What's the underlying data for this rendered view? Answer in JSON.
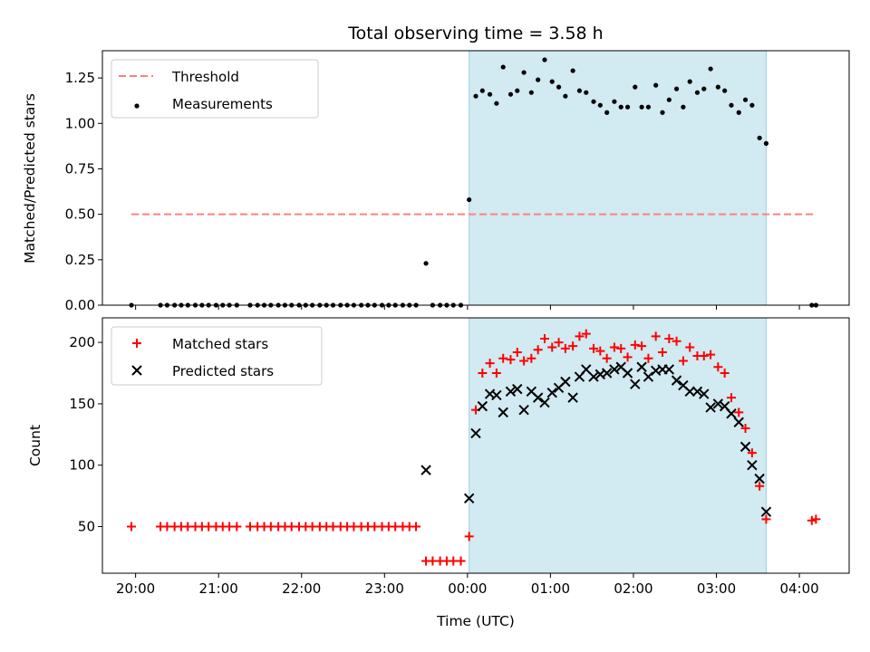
{
  "chart_data": [
    {
      "type": "scatter",
      "title": "Total observing time = 3.58 h",
      "xlabel": "",
      "ylabel": "Matched/Predicted stars",
      "ylim": [
        0,
        1.4
      ],
      "yticks": [
        "0.00",
        "0.25",
        "0.50",
        "0.75",
        "1.00",
        "1.25"
      ],
      "shaded_interval": {
        "start_hour": 24.02,
        "end_hour": 27.6,
        "color": "#add8e6"
      },
      "legend": {
        "placement": "top-left",
        "entries": [
          "Threshold",
          "Measurements"
        ]
      },
      "series": [
        {
          "name": "Threshold",
          "style": "dashed-line",
          "color": "#ff7f7f",
          "x": [
            19.95,
            28.2
          ],
          "y": [
            0.5,
            0.5
          ]
        },
        {
          "name": "Measurements",
          "style": "dot",
          "color": "#000000",
          "x": [
            19.95,
            20.3,
            20.38,
            20.47,
            20.55,
            20.63,
            20.72,
            20.8,
            20.88,
            20.97,
            21.05,
            21.13,
            21.22,
            21.38,
            21.47,
            21.55,
            21.63,
            21.72,
            21.8,
            21.88,
            21.97,
            22.05,
            22.13,
            22.22,
            22.3,
            22.38,
            22.47,
            22.55,
            22.63,
            22.72,
            22.8,
            22.88,
            22.97,
            23.05,
            23.13,
            23.22,
            23.3,
            23.38,
            23.5,
            23.58,
            23.67,
            23.75,
            23.83,
            23.92,
            24.02,
            24.1,
            24.18,
            24.27,
            24.35,
            24.43,
            24.52,
            24.6,
            24.68,
            24.77,
            24.85,
            24.93,
            25.02,
            25.1,
            25.18,
            25.27,
            25.35,
            25.43,
            25.52,
            25.6,
            25.68,
            25.77,
            25.85,
            25.93,
            26.02,
            26.1,
            26.18,
            26.27,
            26.35,
            26.43,
            26.52,
            26.6,
            26.68,
            26.77,
            26.85,
            26.93,
            27.02,
            27.1,
            27.18,
            27.27,
            27.35,
            27.43,
            27.52,
            27.6,
            28.15,
            28.2
          ],
          "y": [
            0.0,
            0.0,
            0.0,
            0.0,
            0.0,
            0.0,
            0.0,
            0.0,
            0.0,
            0.0,
            0.0,
            0.0,
            0.0,
            0.0,
            0.0,
            0.0,
            0.0,
            0.0,
            0.0,
            0.0,
            0.0,
            0.0,
            0.0,
            0.0,
            0.0,
            0.0,
            0.0,
            0.0,
            0.0,
            0.0,
            0.0,
            0.0,
            0.0,
            0.0,
            0.0,
            0.0,
            0.0,
            0.0,
            0.23,
            0.0,
            0.0,
            0.0,
            0.0,
            0.0,
            0.58,
            1.15,
            1.18,
            1.16,
            1.11,
            1.31,
            1.16,
            1.18,
            1.28,
            1.17,
            1.24,
            1.35,
            1.23,
            1.2,
            1.15,
            1.29,
            1.18,
            1.17,
            1.12,
            1.1,
            1.06,
            1.12,
            1.09,
            1.09,
            1.2,
            1.09,
            1.09,
            1.21,
            1.06,
            1.13,
            1.19,
            1.09,
            1.23,
            1.17,
            1.19,
            1.3,
            1.2,
            1.18,
            1.1,
            1.06,
            1.13,
            1.1,
            0.92,
            0.89,
            0.0,
            0.0
          ]
        }
      ]
    },
    {
      "type": "scatter",
      "title": "",
      "xlabel": "Time (UTC)",
      "ylabel": "Count",
      "ylim": [
        12,
        220
      ],
      "yticks": [
        "50",
        "100",
        "150",
        "200"
      ],
      "xlim_hours": [
        19.6,
        28.6
      ],
      "xtick_hours": [
        20,
        21,
        22,
        23,
        24,
        25,
        26,
        27,
        28
      ],
      "xticks": [
        "20:00",
        "21:00",
        "22:00",
        "23:00",
        "00:00",
        "01:00",
        "02:00",
        "03:00",
        "04:00"
      ],
      "shaded_interval": {
        "start_hour": 24.02,
        "end_hour": 27.6,
        "color": "#add8e6"
      },
      "legend": {
        "placement": "top-left",
        "entries": [
          "Matched stars",
          "Predicted stars"
        ]
      },
      "series": [
        {
          "name": "Matched stars",
          "style": "plus",
          "color": "#ff0000",
          "x": [
            19.95,
            20.3,
            20.38,
            20.47,
            20.55,
            20.63,
            20.72,
            20.8,
            20.88,
            20.97,
            21.05,
            21.13,
            21.22,
            21.38,
            21.47,
            21.55,
            21.63,
            21.72,
            21.8,
            21.88,
            21.97,
            22.05,
            22.13,
            22.22,
            22.3,
            22.38,
            22.47,
            22.55,
            22.63,
            22.72,
            22.8,
            22.88,
            22.97,
            23.05,
            23.13,
            23.22,
            23.3,
            23.38,
            23.5,
            23.58,
            23.67,
            23.75,
            23.83,
            23.92,
            24.02,
            24.1,
            24.18,
            24.27,
            24.35,
            24.43,
            24.52,
            24.6,
            24.68,
            24.77,
            24.85,
            24.93,
            25.02,
            25.1,
            25.18,
            25.27,
            25.35,
            25.43,
            25.52,
            25.6,
            25.68,
            25.77,
            25.85,
            25.93,
            26.02,
            26.1,
            26.18,
            26.27,
            26.35,
            26.43,
            26.52,
            26.6,
            26.68,
            26.77,
            26.85,
            26.93,
            27.02,
            27.1,
            27.18,
            27.27,
            27.35,
            27.43,
            27.52,
            27.6,
            28.15,
            28.2
          ],
          "y": [
            50,
            50,
            50,
            50,
            50,
            50,
            50,
            50,
            50,
            50,
            50,
            50,
            50,
            50,
            50,
            50,
            50,
            50,
            50,
            50,
            50,
            50,
            50,
            50,
            50,
            50,
            50,
            50,
            50,
            50,
            50,
            50,
            50,
            50,
            50,
            50,
            50,
            50,
            22,
            22,
            22,
            22,
            22,
            22,
            42,
            145,
            175,
            183,
            175,
            187,
            186,
            192,
            185,
            187,
            194,
            203,
            196,
            200,
            195,
            197,
            205,
            207,
            195,
            193,
            187,
            196,
            195,
            188,
            198,
            197,
            187,
            205,
            192,
            203,
            201,
            185,
            196,
            189,
            189,
            190,
            180,
            175,
            155,
            143,
            130,
            110,
            83,
            56,
            55,
            56
          ]
        },
        {
          "name": "Predicted stars",
          "style": "x",
          "color": "#000000",
          "x": [
            23.5,
            24.02,
            24.1,
            24.18,
            24.27,
            24.35,
            24.43,
            24.52,
            24.6,
            24.68,
            24.77,
            24.85,
            24.93,
            25.02,
            25.1,
            25.18,
            25.27,
            25.35,
            25.43,
            25.52,
            25.6,
            25.68,
            25.77,
            25.85,
            25.93,
            26.02,
            26.1,
            26.18,
            26.27,
            26.35,
            26.43,
            26.52,
            26.6,
            26.68,
            26.77,
            26.85,
            26.93,
            27.02,
            27.1,
            27.18,
            27.27,
            27.35,
            27.43,
            27.52,
            27.6
          ],
          "y": [
            96,
            73,
            126,
            148,
            158,
            157,
            143,
            160,
            162,
            145,
            160,
            155,
            151,
            159,
            163,
            168,
            155,
            172,
            178,
            172,
            174,
            175,
            178,
            180,
            175,
            166,
            180,
            172,
            177,
            178,
            178,
            169,
            165,
            160,
            160,
            158,
            147,
            150,
            148,
            142,
            135,
            115,
            100,
            89,
            62
          ]
        }
      ]
    }
  ]
}
